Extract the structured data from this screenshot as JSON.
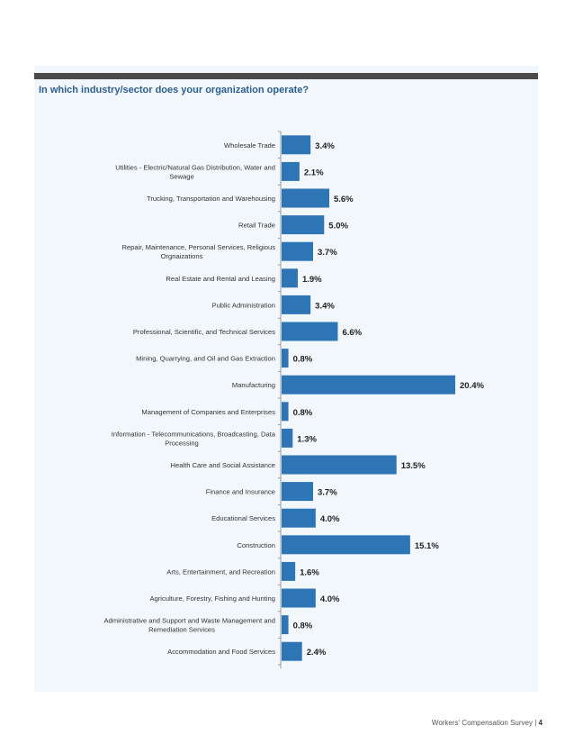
{
  "question": "In which industry/sector does your organization operate?",
  "footer": {
    "text": "Workers' Compensation Survey",
    "page": "4"
  },
  "colors": {
    "bar": "#2e75b6",
    "panel": "#f2f7fb",
    "header_rule": "#4a4a4a",
    "question": "#2b5f8f"
  },
  "chart_data": {
    "type": "bar",
    "orientation": "horizontal",
    "value_suffix": "%",
    "grid": false,
    "categories": [
      "Wholesale Trade",
      "Utilities - Electric/Natural Gas Distribution, Water and Sewage",
      "Trucking, Transportation and Warehousing",
      "Retail Trade",
      "Repair, Maintenance, Personal Services, Religious Orgnaizations",
      "Real Estate and Rental and Leasing",
      "Public Administration",
      "Professional, Scientific, and Technical Services",
      "Mining, Quarrying, and Oil and Gas Extraction",
      "Manufacturing",
      "Management of Companies and Enterprises",
      "Information - Telecommunications, Broadcasting, Data Processing",
      "Health Care and Social Assistance",
      "Finance and Insurance",
      "Educational Services",
      "Construction",
      "Arts, Entertainment, and Recreation",
      "Agriculture, Forestry, Fishing and Hunting",
      "Administrative and Support and Waste Management and Remediation Services",
      "Accommodation and Food Services"
    ],
    "label_lines": [
      [
        "Wholesale Trade"
      ],
      [
        "Utilities - Electric/Natural Gas Distribution, Water and",
        "Sewage"
      ],
      [
        "Trucking, Transportation and Warehousing"
      ],
      [
        "Retail Trade"
      ],
      [
        "Repair, Maintenance, Personal Services, Religious",
        "Orgnaizations"
      ],
      [
        "Real Estate and Rental and Leasing"
      ],
      [
        "Public Administration"
      ],
      [
        "Professional, Scientific, and Technical Services"
      ],
      [
        "Mining, Quarrying, and Oil and Gas Extraction"
      ],
      [
        "Manufacturing"
      ],
      [
        "Management of Companies and Enterprises"
      ],
      [
        "Information - Telecommunications, Broadcasting, Data",
        "Processing"
      ],
      [
        "Health Care and Social Assistance"
      ],
      [
        "Finance and Insurance"
      ],
      [
        "Educational Services"
      ],
      [
        "Construction"
      ],
      [
        "Arts, Entertainment, and Recreation"
      ],
      [
        "Agriculture, Forestry, Fishing and Hunting"
      ],
      [
        "Administrative and Support and Waste Management and",
        "Remediation Services"
      ],
      [
        "Accommodation and Food Services"
      ]
    ],
    "values": [
      3.4,
      2.1,
      5.6,
      5.0,
      3.7,
      1.9,
      3.4,
      6.6,
      0.8,
      20.4,
      0.8,
      1.3,
      13.5,
      3.7,
      4.0,
      15.1,
      1.6,
      4.0,
      0.8,
      2.4
    ],
    "value_labels": [
      "3.4%",
      "2.1%",
      "5.6%",
      "5.0%",
      "3.7%",
      "1.9%",
      "3.4%",
      "6.6%",
      "0.8%",
      "20.4%",
      "0.8%",
      "1.3%",
      "13.5%",
      "3.7%",
      "4.0%",
      "15.1%",
      "1.6%",
      "4.0%",
      "0.8%",
      "2.4%"
    ],
    "xlim": [
      0,
      20.4
    ]
  }
}
